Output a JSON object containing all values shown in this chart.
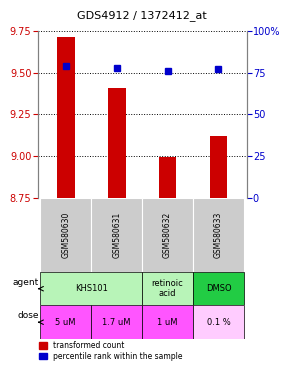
{
  "title": "GDS4912 / 1372412_at",
  "samples": [
    "GSM580630",
    "GSM580631",
    "GSM580632",
    "GSM580633"
  ],
  "bar_values": [
    9.71,
    9.41,
    8.995,
    9.12
  ],
  "percentile_values": [
    79,
    78,
    76,
    77
  ],
  "ylim_left": [
    8.75,
    9.75
  ],
  "ylim_right": [
    0,
    100
  ],
  "yticks_left": [
    8.75,
    9.0,
    9.25,
    9.5,
    9.75
  ],
  "yticks_right": [
    0,
    25,
    50,
    75,
    100
  ],
  "ytick_labels_right": [
    "0",
    "25",
    "50",
    "75",
    "100%"
  ],
  "bar_color": "#cc0000",
  "percentile_color": "#0000cc",
  "sample_bg_color": "#cccccc",
  "agent_groups": [
    {
      "label": "KHS101",
      "start": 0,
      "end": 2,
      "color": "#b8f4b8"
    },
    {
      "label": "retinoic\nacid",
      "start": 2,
      "end": 3,
      "color": "#b8f4b8"
    },
    {
      "label": "DMSO",
      "start": 3,
      "end": 4,
      "color": "#22cc44"
    }
  ],
  "dose_labels": [
    "5 uM",
    "1.7 uM",
    "1 uM",
    "0.1 %"
  ],
  "dose_colors": [
    "#ff55ff",
    "#ff55ff",
    "#ff55ff",
    "#ffccff"
  ],
  "legend_red_label": "transformed count",
  "legend_blue_label": "percentile rank within the sample"
}
